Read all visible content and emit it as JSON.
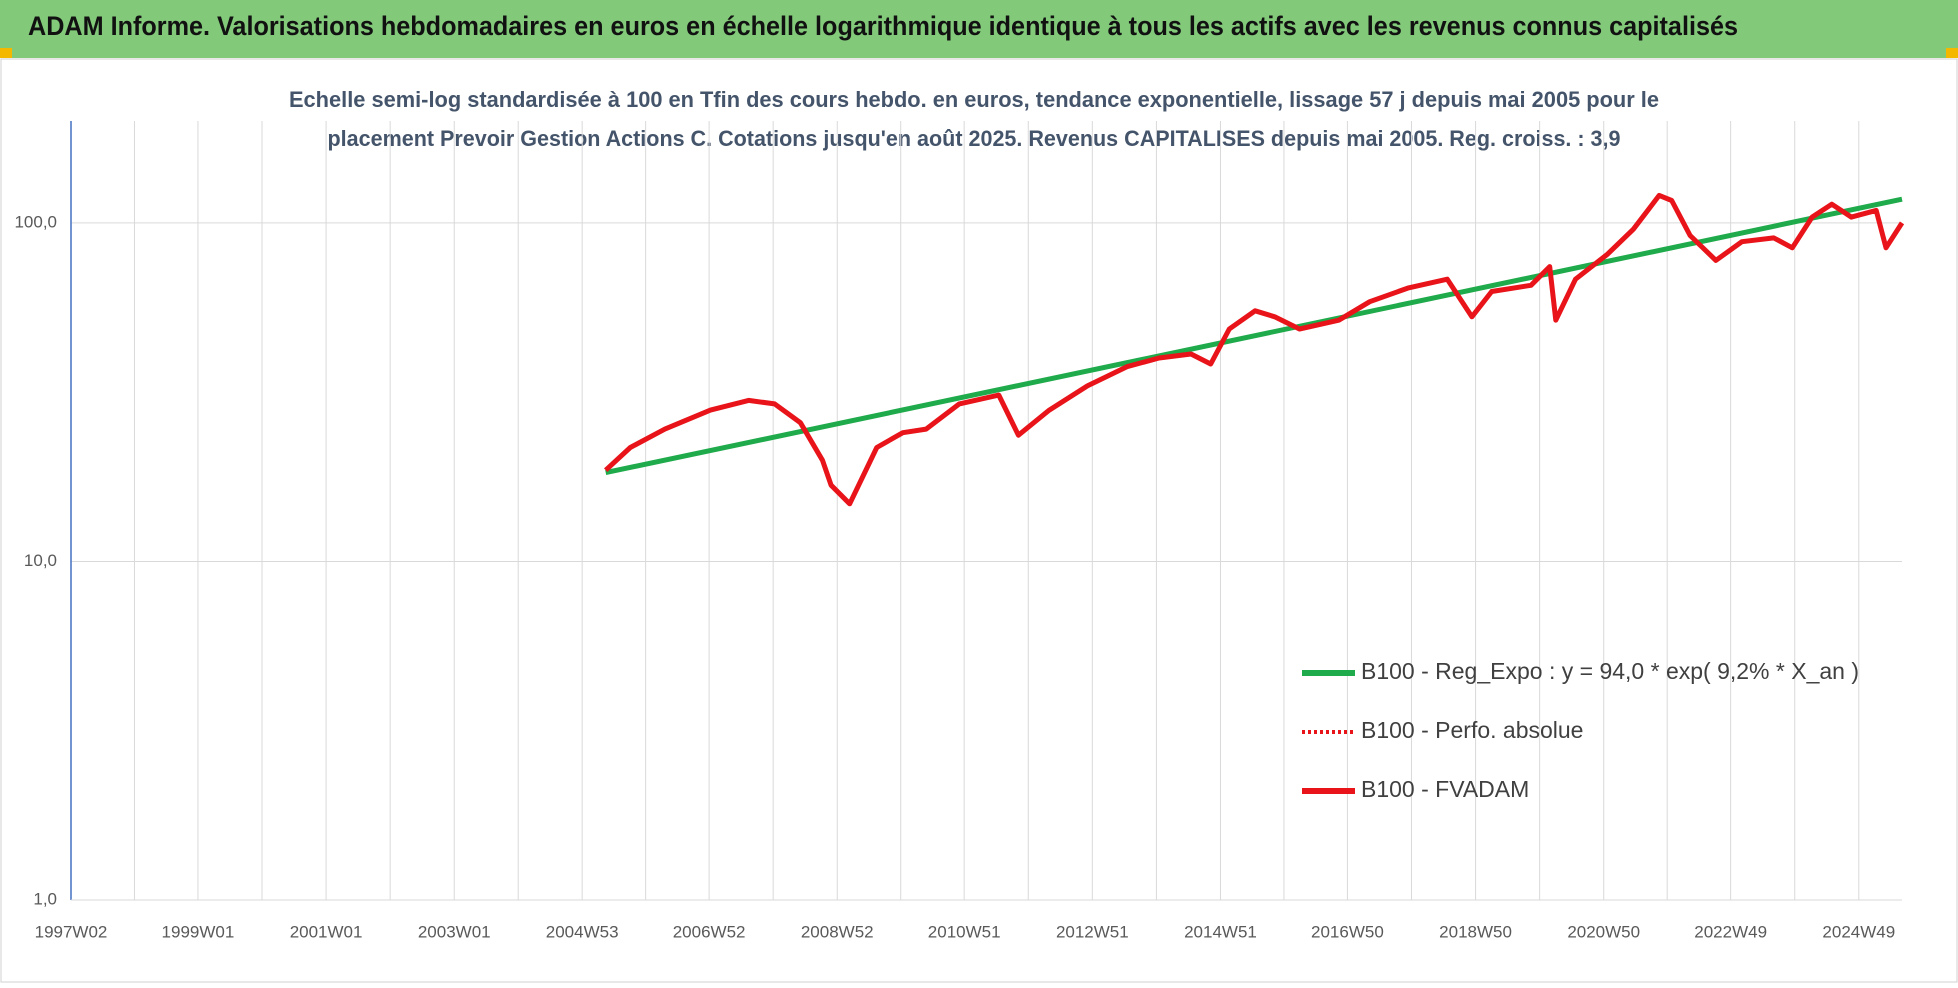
{
  "chart_data": {
    "type": "line",
    "title": "ADAM Informe. Valorisations hebdomadaires en euros en échelle logarithmique identique à tous les actifs avec les revenus connus capitalisés",
    "subtitle": [
      "Echelle semi-log standardisée à 100 en Tfin des cours hebdo. en euros, tendance exponentielle, lissage 57 j depuis mai 2005 pour le",
      "placement Prevoir Gestion Actions C. Cotations jusqu'en août 2025. Revenus CAPITALISES depuis mai 2005. Reg. croiss. : 3,9"
    ],
    "log_scale": true,
    "grid": true,
    "xlim": [
      "1997W02",
      "2025W32"
    ],
    "xticks": [
      "1997W02",
      "1999W01",
      "2001W01",
      "2003W01",
      "2004W53",
      "2006W52",
      "2008W52",
      "2010W51",
      "2012W51",
      "2014W51",
      "2016W50",
      "2018W50",
      "2020W50",
      "2022W49",
      "2024W49"
    ],
    "ylim": [
      1,
      200
    ],
    "yticks": [
      {
        "value": 1,
        "label": "1,0"
      },
      {
        "value": 10,
        "label": "10,0"
      },
      {
        "value": 100,
        "label": "100,0"
      }
    ],
    "series": [
      {
        "name": "B100 - Reg_Expo : y = 94,0 * exp( 9,2% *  X_an )",
        "color": "#1faa4b",
        "dash": "solid",
        "x": [
          "2005W20",
          "2025W32"
        ],
        "values": [
          18.3,
          117.5
        ]
      },
      {
        "name": "B100 - Perfo. absolue",
        "color": "#e8141a",
        "dash": "dotted",
        "x": [],
        "values": []
      },
      {
        "name": "B100 - FVADAM",
        "color": "#e8141a",
        "dash": "solid",
        "x": [
          "2005W20",
          "2005W40",
          "2006W16",
          "2007W01",
          "2007W32",
          "2008W01",
          "2008W22",
          "2008W40",
          "2008W47",
          "2009W10",
          "2009W32",
          "2010W01",
          "2010W20",
          "2010W47",
          "2011W27",
          "2011W43",
          "2012W16",
          "2012W47",
          "2013W27",
          "2014W01",
          "2014W27",
          "2014W43",
          "2015W06",
          "2015W27",
          "2015W43",
          "2016W11",
          "2016W43",
          "2017W16",
          "2017W47",
          "2018W27",
          "2018W47",
          "2019W11",
          "2019W43",
          "2020W06",
          "2020W11",
          "2020W27",
          "2021W01",
          "2021W22",
          "2021W43",
          "2022W01",
          "2022W16",
          "2022W37",
          "2023W06",
          "2023W32",
          "2023W47",
          "2024W11",
          "2024W27",
          "2024W43",
          "2025W11",
          "2025W19",
          "2025W32"
        ],
        "values": [
          18.6,
          21.7,
          24.6,
          28.0,
          29.9,
          29.2,
          25.7,
          19.9,
          16.8,
          14.8,
          21.7,
          24.0,
          24.6,
          29.2,
          31.0,
          23.6,
          28.0,
          33.0,
          37.6,
          39.9,
          41.0,
          38.3,
          48.6,
          55.0,
          52.8,
          48.6,
          51.6,
          58.5,
          64.2,
          68.2,
          52.8,
          62.7,
          65.4,
          74.3,
          51.6,
          68.2,
          80.9,
          95.8,
          120.6,
          116.5,
          91.8,
          77.5,
          88.0,
          90.3,
          84.4,
          104,
          113.6,
          104,
          108.9,
          84.4,
          100
        ]
      }
    ]
  }
}
